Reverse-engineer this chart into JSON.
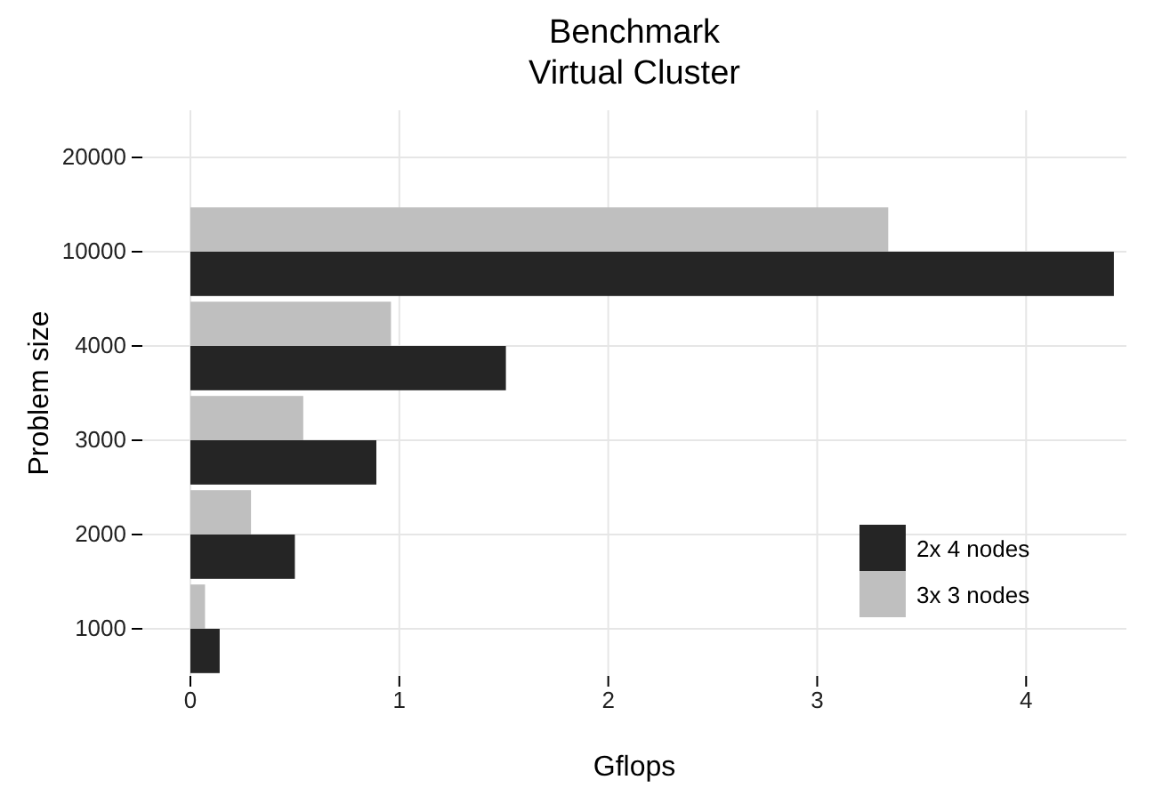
{
  "chart_data": {
    "type": "bar",
    "orientation": "horizontal",
    "title": "Benchmark",
    "subtitle": "Virtual Cluster",
    "xlabel": "Gflops",
    "ylabel": "Problem size",
    "categories": [
      "20000",
      "10000",
      "4000",
      "3000",
      "2000",
      "1000"
    ],
    "series": [
      {
        "name": "3x 3 nodes",
        "color": "#bfbfbf",
        "values": [
          null,
          3.34,
          0.96,
          0.54,
          0.29,
          0.07
        ]
      },
      {
        "name": "2x 4 nodes",
        "color": "#252525",
        "values": [
          null,
          4.42,
          1.51,
          0.89,
          0.5,
          0.14
        ]
      }
    ],
    "xlim": [
      -0.23,
      4.48
    ],
    "xticks": [
      0,
      1,
      2,
      3,
      4
    ],
    "grid": true,
    "legend": "bottom right"
  }
}
